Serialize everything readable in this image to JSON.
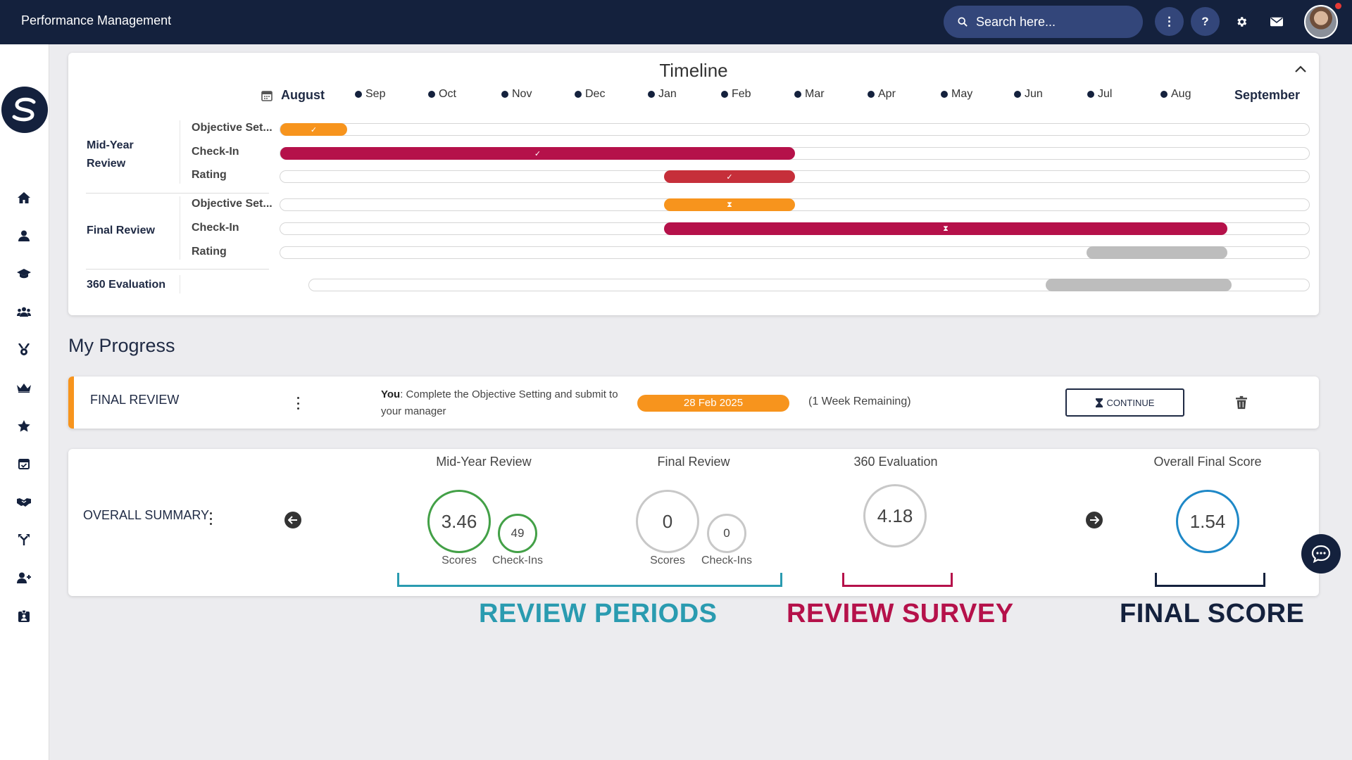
{
  "app": {
    "title": "Performance Management"
  },
  "header": {
    "search_placeholder": "Search here...",
    "more_label": "⋮",
    "help_label": "?"
  },
  "timeline": {
    "title": "Timeline",
    "months": [
      "August",
      "Sep",
      "Oct",
      "Nov",
      "Dec",
      "Jan",
      "Feb",
      "Mar",
      "Apr",
      "May",
      "Jun",
      "Jul",
      "Aug",
      "September"
    ],
    "groups": [
      {
        "name": "Mid-Year Review",
        "phases": [
          "Objective Set...",
          "Check-In",
          "Rating"
        ]
      },
      {
        "name": "Final Review",
        "phases": [
          "Objective Set...",
          "Check-In",
          "Rating"
        ]
      },
      {
        "name": "360 Evaluation",
        "phases": []
      }
    ],
    "colors": {
      "orange": "#f7941d",
      "crimson": "#b5114a",
      "red": "#c62f3a",
      "grey": "#bdbdbd"
    }
  },
  "progress": {
    "title": "My Progress",
    "final_review": {
      "label": "FINAL REVIEW",
      "desc_you": "You",
      "desc_rest": ": Complete the Objective Setting and submit to your manager",
      "date": "28 Feb 2025",
      "remaining": "(1 Week Remaining)",
      "continue_label": "CONTINUE"
    }
  },
  "summary": {
    "label": "OVERALL SUMMARY",
    "mid_year": {
      "title": "Mid-Year Review",
      "score": "3.46",
      "score_label": "Scores",
      "checkins": "49",
      "checkins_label": "Check-Ins"
    },
    "final": {
      "title": "Final Review",
      "score": "0",
      "score_label": "Scores",
      "checkins": "0",
      "checkins_label": "Check-Ins"
    },
    "evaluation": {
      "title": "360 Evaluation",
      "score": "4.18"
    },
    "overall": {
      "title": "Overall Final Score",
      "score": "1.54"
    }
  },
  "annotations": {
    "review_periods": "REVIEW PERIODS",
    "review_survey": "REVIEW SURVEY",
    "final_score": "FINAL SCORE",
    "colors": {
      "teal": "#2a9bb0",
      "crimson": "#b5114a",
      "navy": "#14213d"
    }
  }
}
